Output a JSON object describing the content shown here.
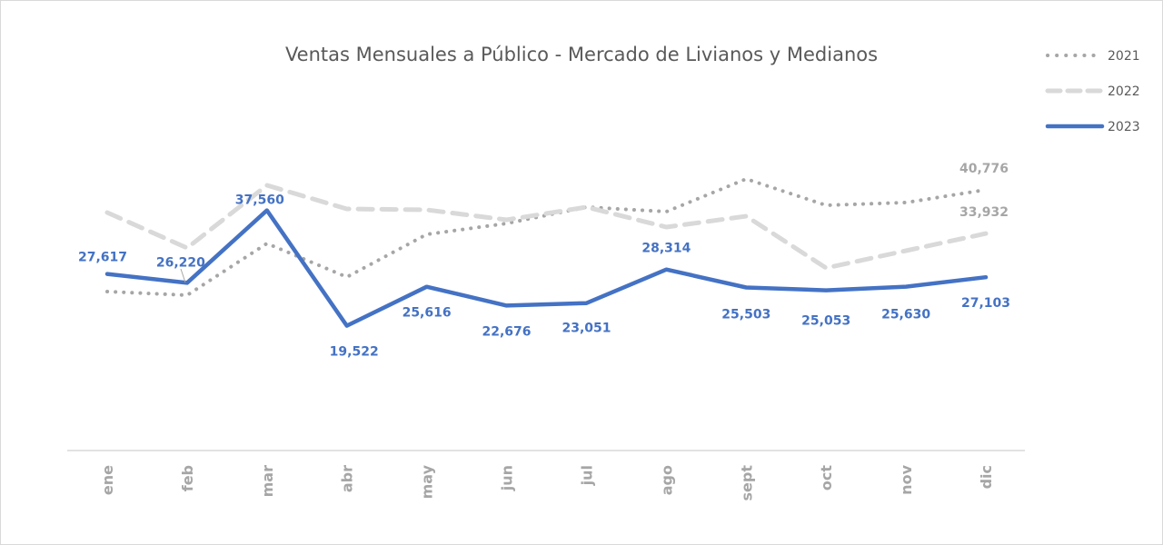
{
  "chart_data": {
    "type": "line",
    "title": "Ventas Mensuales a Público - Mercado de Livianos y Medianos",
    "xlabel": "",
    "ylabel": "",
    "ylim": [
      0,
      60000
    ],
    "grid": false,
    "legend_position": "top-right",
    "categories": [
      "ene",
      "feb",
      "mar",
      "abr",
      "may",
      "jun",
      "jul",
      "ago",
      "sept",
      "oct",
      "nov",
      "dic"
    ],
    "series": [
      {
        "name": "2021",
        "style": "dotted",
        "color": "#a6a6a6",
        "values": [
          24860,
          24290,
          32390,
          27130,
          33810,
          35510,
          38070,
          37360,
          42470,
          38350,
          38780,
          40776
        ],
        "labels": [
          "",
          "",
          "",
          "",
          "",
          "",
          "",
          "",
          "",
          "",
          "",
          "40,776"
        ]
      },
      {
        "name": "2022",
        "style": "dashed",
        "color": "#d9d9d9",
        "values": [
          37220,
          31680,
          41480,
          37780,
          37640,
          36080,
          38070,
          34940,
          36650,
          28550,
          31250,
          33932
        ],
        "labels": [
          "",
          "",
          "",
          "",
          "",
          "",
          "",
          "",
          "",
          "",
          "",
          "33,932"
        ]
      },
      {
        "name": "2023",
        "style": "solid",
        "color": "#4472c4",
        "values": [
          27617,
          26220,
          37560,
          19522,
          25616,
          22676,
          23051,
          28314,
          25503,
          25053,
          25630,
          27103
        ],
        "labels": [
          "27,617",
          "26,220",
          "37,560",
          "19,522",
          "25,616",
          "22,676",
          "23,051",
          "28,314",
          "25,503",
          "25,053",
          "25,630",
          "27,103"
        ]
      }
    ]
  }
}
